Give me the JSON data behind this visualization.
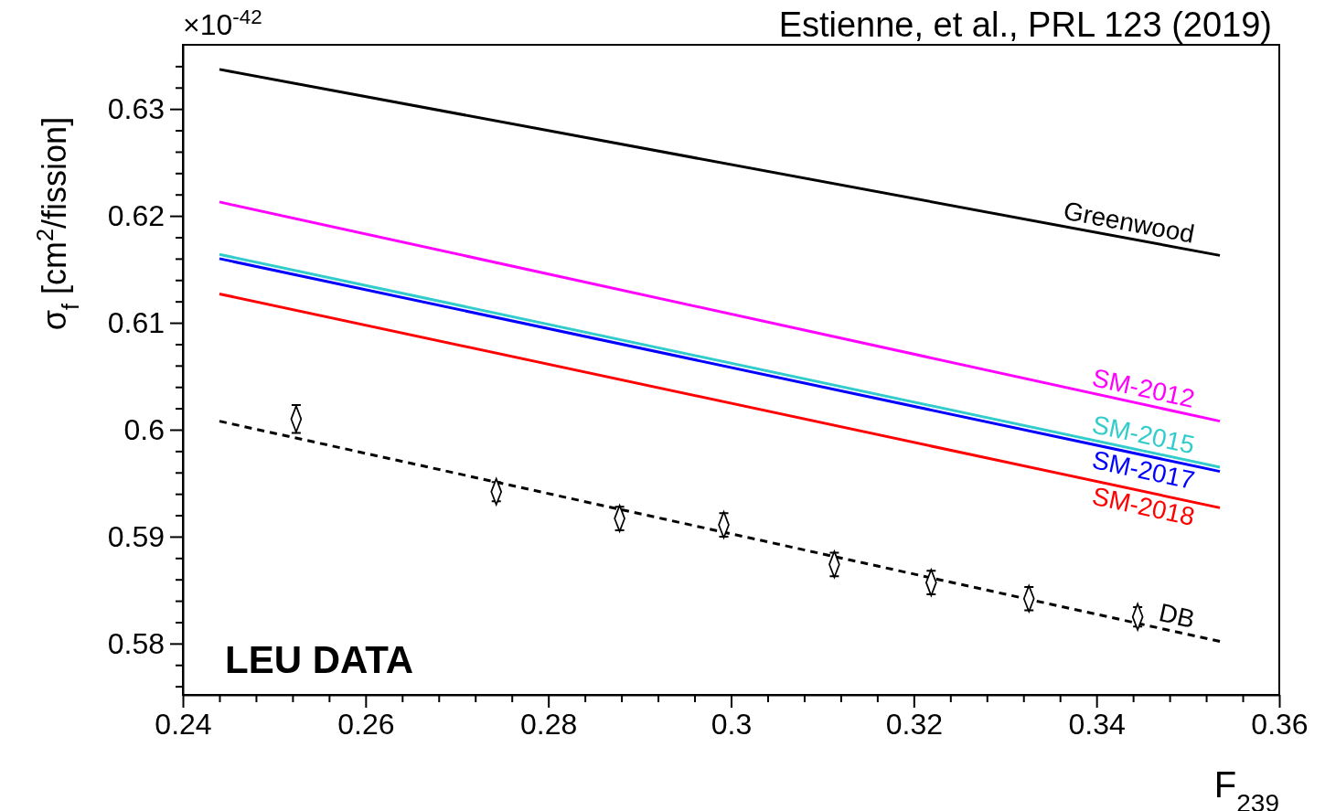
{
  "chart_data": {
    "type": "line",
    "ylabel": "σ$_{f}$ [cm$^{2}$/fission]",
    "xlabel": "F$_{239}$",
    "annotations": [
      "×10$^{-42}$",
      "Estienne, et al., PRL 123 (2019)",
      "LEU DATA"
    ],
    "xlim": [
      0.24,
      0.36
    ],
    "ylim": [
      0.5752,
      0.636
    ],
    "xticks": [
      0.24,
      {
        "value": 0.244,
        "label": null
      },
      {
        "value": 0.248,
        "label": null
      },
      {
        "value": 0.252,
        "label": null
      },
      {
        "value": 0.256,
        "label": null
      },
      0.26,
      {
        "value": 0.264,
        "label": null
      },
      {
        "value": 0.268,
        "label": null
      },
      {
        "value": 0.272,
        "label": null
      },
      {
        "value": 0.276,
        "label": null
      },
      0.28,
      {
        "value": 0.284,
        "label": null
      },
      {
        "value": 0.288,
        "label": null
      },
      {
        "value": 0.292,
        "label": null
      },
      {
        "value": 0.296,
        "label": null
      },
      0.3,
      {
        "value": 0.304,
        "label": null
      },
      {
        "value": 0.308,
        "label": null
      },
      {
        "value": 0.312,
        "label": null
      },
      {
        "value": 0.316,
        "label": null
      },
      0.32,
      {
        "value": 0.324,
        "label": null
      },
      {
        "value": 0.328,
        "label": null
      },
      {
        "value": 0.332,
        "label": null
      },
      {
        "value": 0.336,
        "label": null
      },
      0.34,
      {
        "value": 0.344,
        "label": null
      },
      {
        "value": 0.348,
        "label": null
      },
      {
        "value": 0.352,
        "label": null
      },
      {
        "value": 0.356,
        "label": null
      },
      0.36
    ],
    "yticks": [
      {
        "value": 0.576,
        "label": null
      },
      {
        "value": 0.578,
        "label": null
      },
      0.58,
      {
        "value": 0.582,
        "label": null
      },
      {
        "value": 0.584,
        "label": null
      },
      {
        "value": 0.586,
        "label": null
      },
      {
        "value": 0.588,
        "label": null
      },
      0.59,
      {
        "value": 0.592,
        "label": null
      },
      {
        "value": 0.594,
        "label": null
      },
      {
        "value": 0.596,
        "label": null
      },
      {
        "value": 0.598,
        "label": null
      },
      0.6,
      {
        "value": 0.602,
        "label": null
      },
      {
        "value": 0.604,
        "label": null
      },
      {
        "value": 0.606,
        "label": null
      },
      {
        "value": 0.608,
        "label": null
      },
      0.61,
      {
        "value": 0.612,
        "label": null
      },
      {
        "value": 0.614,
        "label": null
      },
      {
        "value": 0.616,
        "label": null
      },
      {
        "value": 0.618,
        "label": null
      },
      0.62,
      {
        "value": 0.622,
        "label": null
      },
      {
        "value": 0.624,
        "label": null
      },
      {
        "value": 0.626,
        "label": null
      },
      {
        "value": 0.628,
        "label": null
      },
      0.63,
      {
        "value": 0.632,
        "label": null
      },
      {
        "value": 0.634,
        "label": null
      }
    ],
    "series": [
      {
        "name": "Greenwood",
        "color": "#000000",
        "x": [
          0.244,
          0.3535
        ],
        "values": [
          0.6337,
          0.6163
        ]
      },
      {
        "name": "SM-2012",
        "color": "#ff00ff",
        "x": [
          0.244,
          0.3535
        ],
        "values": [
          0.6213,
          0.6008
        ]
      },
      {
        "name": "SM-2015",
        "color": "#33cccc",
        "x": [
          0.244,
          0.3535
        ],
        "values": [
          0.6164,
          0.5965
        ]
      },
      {
        "name": "SM-2017",
        "color": "#0000ff",
        "x": [
          0.244,
          0.3535
        ],
        "values": [
          0.616,
          0.5961
        ]
      },
      {
        "name": "SM-2018",
        "color": "#ff0000",
        "x": [
          0.244,
          0.3535
        ],
        "values": [
          0.6127,
          0.5927
        ]
      },
      {
        "name": "DB",
        "color": "#000000",
        "line_style": "dashed",
        "x": [
          0.244,
          0.3535
        ],
        "values": [
          0.6008,
          0.5802
        ]
      },
      {
        "type": "scatter",
        "marker": "diamond",
        "color": "#000000",
        "x": [
          0.2524,
          0.2743,
          0.2878,
          0.2992,
          0.3113,
          0.3219,
          0.3326,
          0.3445
        ],
        "values": [
          0.601,
          0.5942,
          0.5917,
          0.5911,
          0.5874,
          0.5857,
          0.5842,
          0.5825
        ],
        "errors": [
          0.0013,
          0.0009,
          0.0011,
          0.0011,
          0.0011,
          0.0011,
          0.0011,
          0.0009
        ]
      }
    ]
  }
}
